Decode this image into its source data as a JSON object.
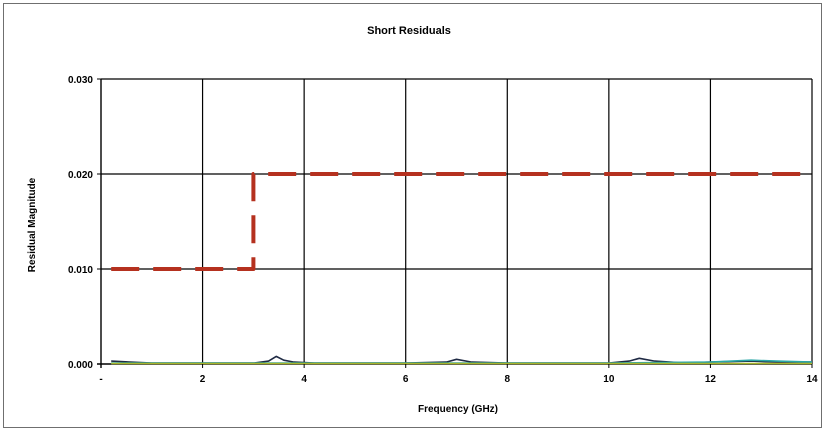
{
  "chart_data": {
    "type": "line",
    "title": "Short Residuals",
    "xlabel": "Frequency (GHz)",
    "ylabel": "Residual Magnitude",
    "xlim": [
      0,
      14
    ],
    "ylim": [
      0,
      0.03
    ],
    "x_ticks": [
      {
        "value": 0,
        "label": "-"
      },
      {
        "value": 2,
        "label": "2"
      },
      {
        "value": 4,
        "label": "4"
      },
      {
        "value": 6,
        "label": "6"
      },
      {
        "value": 8,
        "label": "8"
      },
      {
        "value": 10,
        "label": "10"
      },
      {
        "value": 12,
        "label": "12"
      },
      {
        "value": 14,
        "label": "14"
      }
    ],
    "y_ticks": [
      {
        "value": 0,
        "label": "0.000"
      },
      {
        "value": 0.01,
        "label": "0.010"
      },
      {
        "value": 0.02,
        "label": "0.020"
      },
      {
        "value": 0.03,
        "label": "0.030"
      }
    ],
    "grid": true,
    "legend": "none",
    "series": [
      {
        "style": "dashed",
        "color": "#b5311f",
        "x": [
          0.2,
          3.0,
          3.0,
          14.0
        ],
        "y": [
          0.01,
          0.01,
          0.02,
          0.02
        ]
      },
      {
        "style": "solid",
        "color": "#1f2a44",
        "x": [
          0.2,
          1,
          2,
          3,
          3.3,
          3.45,
          3.6,
          3.8,
          4.2,
          5,
          6,
          6.8,
          7.0,
          7.3,
          8,
          9,
          10,
          10.4,
          10.6,
          10.9,
          11.5,
          12,
          12.8,
          13.3,
          14
        ],
        "y": [
          0.0003,
          0.0001,
          0.0001,
          0.0001,
          0.0003,
          0.0008,
          0.0004,
          0.0002,
          0.0001,
          0.0001,
          0.0001,
          0.0002,
          0.0005,
          0.0002,
          0.0001,
          0.0001,
          0.0001,
          0.0003,
          0.0006,
          0.0003,
          0.0001,
          0.0002,
          0.0003,
          0.0002,
          0.0002
        ]
      },
      {
        "style": "solid",
        "color": "#2aa7a7",
        "x": [
          0.2,
          2,
          4,
          6,
          8,
          10,
          12,
          12.8,
          13.3,
          14
        ],
        "y": [
          0.0001,
          0.0001,
          0.0001,
          0.0001,
          0.0001,
          0.0001,
          0.0002,
          0.0004,
          0.0003,
          0.0002
        ]
      },
      {
        "style": "solid",
        "color": "#a7b52a",
        "x": [
          0.2,
          2,
          4,
          6,
          8,
          10,
          12,
          14
        ],
        "y": [
          5e-05,
          5e-05,
          5e-05,
          5e-05,
          5e-05,
          5e-05,
          5e-05,
          5e-05
        ]
      }
    ]
  }
}
